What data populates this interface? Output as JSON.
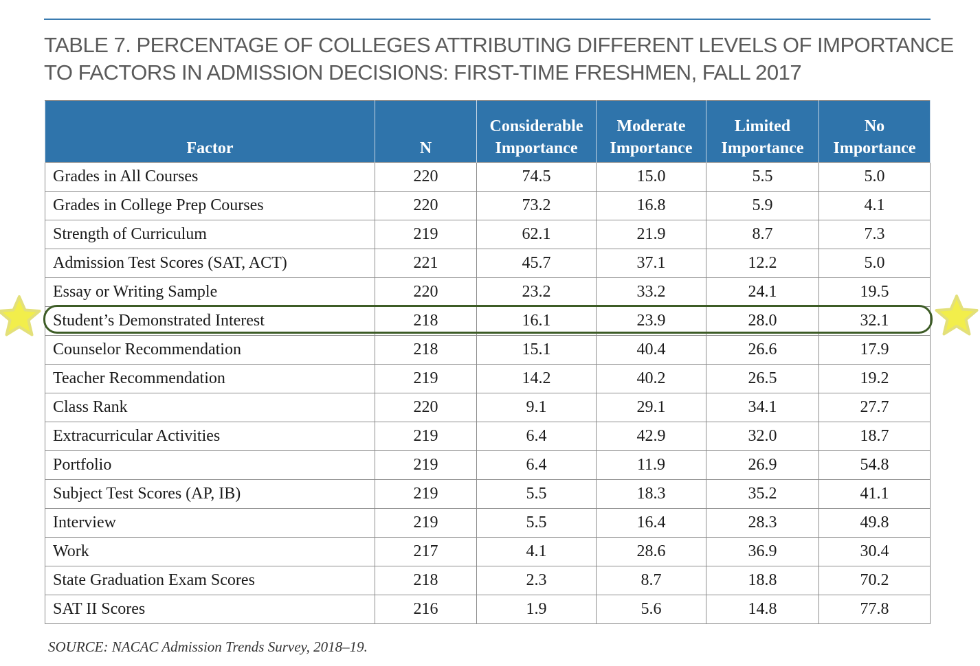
{
  "title": {
    "line1": "TABLE 7. PERCENTAGE OF COLLEGES ATTRIBUTING DIFFERENT LEVELS OF IMPORTANCE",
    "line2": "TO FACTORS IN ADMISSION DECISIONS: FIRST-TIME FRESHMEN, FALL 2017"
  },
  "columns": [
    {
      "line1": "",
      "line2": "Factor"
    },
    {
      "line1": "",
      "line2": "N"
    },
    {
      "line1": "Considerable",
      "line2": "Importance"
    },
    {
      "line1": "Moderate",
      "line2": "Importance"
    },
    {
      "line1": "Limited",
      "line2": "Importance"
    },
    {
      "line1": "No",
      "line2": "Importance"
    }
  ],
  "rows": [
    [
      "Grades in All Courses",
      "220",
      "74.5",
      "15.0",
      "5.5",
      "5.0"
    ],
    [
      "Grades in College Prep Courses",
      "220",
      "73.2",
      "16.8",
      "5.9",
      "4.1"
    ],
    [
      "Strength of Curriculum",
      "219",
      "62.1",
      "21.9",
      "8.7",
      "7.3"
    ],
    [
      "Admission Test Scores (SAT, ACT)",
      "221",
      "45.7",
      "37.1",
      "12.2",
      "5.0"
    ],
    [
      "Essay or Writing Sample",
      "220",
      "23.2",
      "33.2",
      "24.1",
      "19.5"
    ],
    [
      "Student’s Demonstrated Interest",
      "218",
      "16.1",
      "23.9",
      "28.0",
      "32.1"
    ],
    [
      "Counselor Recommendation",
      "218",
      "15.1",
      "40.4",
      "26.6",
      "17.9"
    ],
    [
      "Teacher Recommendation",
      "219",
      "14.2",
      "40.2",
      "26.5",
      "19.2"
    ],
    [
      "Class Rank",
      "220",
      "9.1",
      "29.1",
      "34.1",
      "27.7"
    ],
    [
      "Extracurricular Activities",
      "219",
      "6.4",
      "42.9",
      "32.0",
      "18.7"
    ],
    [
      "Portfolio",
      "219",
      "6.4",
      "11.9",
      "26.9",
      "54.8"
    ],
    [
      "Subject Test Scores (AP, IB)",
      "219",
      "5.5",
      "18.3",
      "35.2",
      "41.1"
    ],
    [
      "Interview",
      "219",
      "5.5",
      "16.4",
      "28.3",
      "49.8"
    ],
    [
      "Work",
      "217",
      "4.1",
      "28.6",
      "36.9",
      "30.4"
    ],
    [
      "State Graduation Exam Scores",
      "218",
      "2.3",
      "8.7",
      "18.8",
      "70.2"
    ],
    [
      "SAT II Scores",
      "216",
      "1.9",
      "5.6",
      "14.8",
      "77.8"
    ]
  ],
  "highlight": {
    "row_index": 5,
    "outline_color": "#3d5c26",
    "star_color": "#f2ee4b",
    "star_glow_color": "#e3e07a",
    "icon": "star-icon"
  },
  "colors": {
    "header_bg": "#2f74ab",
    "rule": "#3a7bb0",
    "title_text": "#5a5a5a"
  },
  "source": "SOURCE: NACAC Admission Trends Survey, 2018–19."
}
